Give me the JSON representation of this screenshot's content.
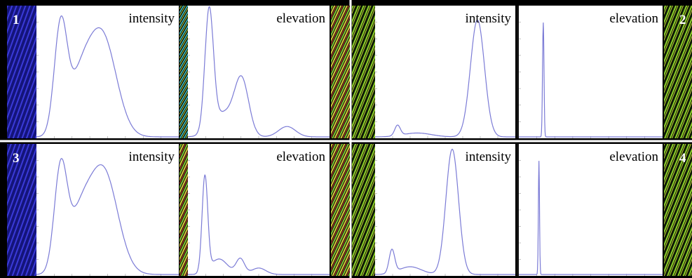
{
  "panels": [
    {
      "number": "1",
      "plots": [
        {
          "label": "intensity"
        },
        {
          "label": "elevation"
        }
      ]
    },
    {
      "number": "2",
      "plots": [
        {
          "label": "intensity"
        },
        {
          "label": "elevation"
        }
      ]
    },
    {
      "number": "3",
      "plots": [
        {
          "label": "intensity"
        },
        {
          "label": "elevation"
        }
      ]
    },
    {
      "number": "4",
      "plots": [
        {
          "label": "intensity"
        },
        {
          "label": "elevation"
        }
      ]
    }
  ]
}
